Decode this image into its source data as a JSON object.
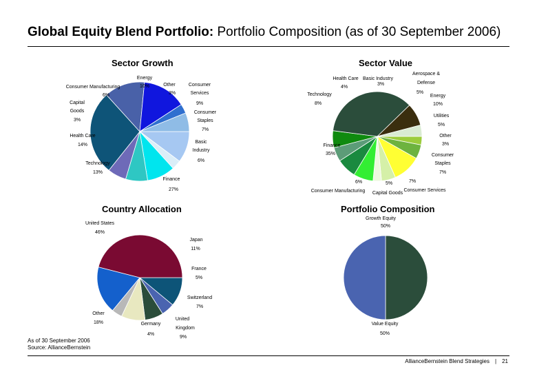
{
  "header": {
    "title_bold": "Global Equity Blend Portfolio:",
    "title_rest": "Portfolio Composition (as of 30 September 2006)"
  },
  "notes": {
    "line1": "As of 30 September 2006",
    "line2": "Source: AllianceBernstein"
  },
  "footer": {
    "text": "AllianceBernstein Blend Strategies",
    "page": "21"
  },
  "chart_data": [
    {
      "id": "sector-growth",
      "type": "pie",
      "title": "Sector Growth",
      "slices": [
        {
          "name": "Energy",
          "value": 10,
          "label": "10%",
          "color": "#a6c8f2"
        },
        {
          "name": "Other",
          "value": 3,
          "label": "3%",
          "color": "#dbeef8"
        },
        {
          "name": "Consumer Services",
          "value": 9,
          "label": "9%",
          "color": "#00e5ee"
        },
        {
          "name": "Consumer Staples",
          "value": 7,
          "label": "7%",
          "color": "#2ec7c3"
        },
        {
          "name": "Basic Industry",
          "value": 6,
          "label": "6%",
          "color": "#6e6ab8"
        },
        {
          "name": "Finance",
          "value": 27,
          "label": "27%",
          "color": "#0e5478"
        },
        {
          "name": "Technology",
          "value": 13,
          "label": "13%",
          "color": "#4961a8"
        },
        {
          "name": "Health Care",
          "value": 14,
          "label": "14%",
          "color": "#1016de"
        },
        {
          "name": "Capital Goods",
          "value": 3,
          "label": "3%",
          "color": "#2f6fcf"
        },
        {
          "name": "Consumer Manufacturing",
          "value": 6,
          "label": "6%",
          "color": "#8fbce6"
        }
      ]
    },
    {
      "id": "sector-value",
      "type": "pie",
      "title": "Sector Value",
      "slices": [
        {
          "name": "Basic Industry",
          "value": 3,
          "label": "3%",
          "color": "#9ccc3c"
        },
        {
          "name": "Aerospace & Defense",
          "value": 5,
          "label": "5%",
          "color": "#6db33f"
        },
        {
          "name": "Energy",
          "value": 10,
          "label": "10%",
          "color": "#ffff33"
        },
        {
          "name": "Utilities",
          "value": 5,
          "label": "5%",
          "color": "#d5f0a8"
        },
        {
          "name": "Other",
          "value": 3,
          "label": "3%",
          "color": "#eef9df"
        },
        {
          "name": "Consumer Staples",
          "value": 7,
          "label": "7%",
          "color": "#33ee33"
        },
        {
          "name": "Consumer Services",
          "value": 7,
          "label": "7%",
          "color": "#1a8a3f"
        },
        {
          "name": "Capital Goods",
          "value": 5,
          "label": "5%",
          "color": "#5c9c78"
        },
        {
          "name": "Consumer Manufacturing",
          "value": 6,
          "label": "6%",
          "color": "#0f8a0f"
        },
        {
          "name": "Finance",
          "value": 35,
          "label": "35%",
          "color": "#2b4d3b"
        },
        {
          "name": "Technology",
          "value": 8,
          "label": "8%",
          "color": "#3a2e0e"
        },
        {
          "name": "Health Care",
          "value": 4,
          "label": "4%",
          "color": "#d9ebd2"
        }
      ]
    },
    {
      "id": "country-allocation",
      "type": "pie",
      "title": "Country Allocation",
      "slices": [
        {
          "name": "Japan",
          "value": 11,
          "label": "11%",
          "color": "#0d5478"
        },
        {
          "name": "France",
          "value": 5,
          "label": "5%",
          "color": "#4a64b0"
        },
        {
          "name": "Switzerland",
          "value": 7,
          "label": "7%",
          "color": "#2b4d3b"
        },
        {
          "name": "United Kingdom",
          "value": 9,
          "label": "9%",
          "color": "#e8e8c0"
        },
        {
          "name": "Germany",
          "value": 4,
          "label": "4%",
          "color": "#b8b8b8"
        },
        {
          "name": "Other",
          "value": 18,
          "label": "18%",
          "color": "#1460cc"
        },
        {
          "name": "United States",
          "value": 46,
          "label": "46%",
          "color": "#7a0a32"
        }
      ]
    },
    {
      "id": "portfolio-composition",
      "type": "pie",
      "title": "Portfolio Composition",
      "slices": [
        {
          "name": "Value Equity",
          "value": 50,
          "label": "50%",
          "color": "#2b4d3b"
        },
        {
          "name": "Growth Equity",
          "value": 50,
          "label": "50%",
          "color": "#4a64b0"
        }
      ]
    }
  ]
}
